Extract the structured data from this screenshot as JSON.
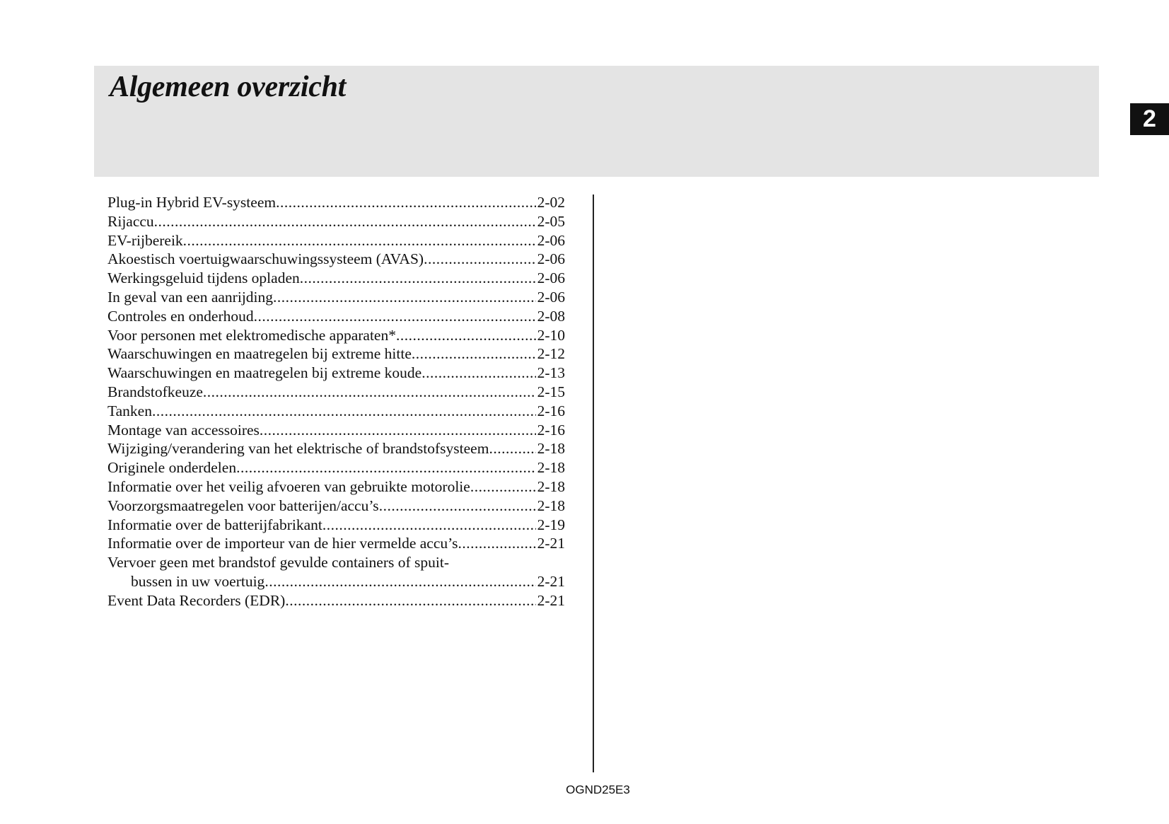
{
  "header": {
    "title": "Algemeen overzicht",
    "chapter_number": "2"
  },
  "toc": [
    {
      "label": "Plug-in Hybrid EV-systeem",
      "page": "2-02"
    },
    {
      "label": "Rijaccu",
      "page": "2-05"
    },
    {
      "label": "EV-rijbereik",
      "page": "2-06"
    },
    {
      "label": "Akoestisch voertuigwaarschuwingssysteem (AVAS)",
      "page": "2-06"
    },
    {
      "label": "Werkingsgeluid tijdens opladen",
      "page": "2-06"
    },
    {
      "label": "In geval van een aanrijding",
      "page": "2-06"
    },
    {
      "label": "Controles en onderhoud",
      "page": "2-08"
    },
    {
      "label": "Voor personen met elektromedische apparaten*",
      "page": "2-10"
    },
    {
      "label": "Waarschuwingen en maatregelen bij extreme hitte",
      "page": "2-12"
    },
    {
      "label": "Waarschuwingen en maatregelen bij extreme koude",
      "page": "2-13"
    },
    {
      "label": "Brandstofkeuze",
      "page": "2-15"
    },
    {
      "label": "Tanken",
      "page": "2-16"
    },
    {
      "label": "Montage van accessoires",
      "page": "2-16"
    },
    {
      "label": "Wijziging/verandering van het elektrische of brandstofsysteem",
      "page": "2-18"
    },
    {
      "label": "Originele onderdelen",
      "page": "2-18"
    },
    {
      "label": "Informatie over het veilig afvoeren van gebruikte motorolie",
      "page": "2-18"
    },
    {
      "label": "Voorzorgsmaatregelen voor batterijen/accu’s",
      "page": "2-18"
    },
    {
      "label": "Informatie over de batterijfabrikant",
      "page": "2-19"
    },
    {
      "label": "Informatie over de importeur van de hier vermelde accu’s",
      "page": "2-21"
    },
    {
      "label": "Vervoer geen met brandstof gevulde containers of spuit-",
      "continuation": "bussen in uw voertuig",
      "page": "2-21"
    },
    {
      "label": "Event Data Recorders (EDR)",
      "page": "2-21"
    }
  ],
  "footer": {
    "code": "OGND25E3"
  }
}
